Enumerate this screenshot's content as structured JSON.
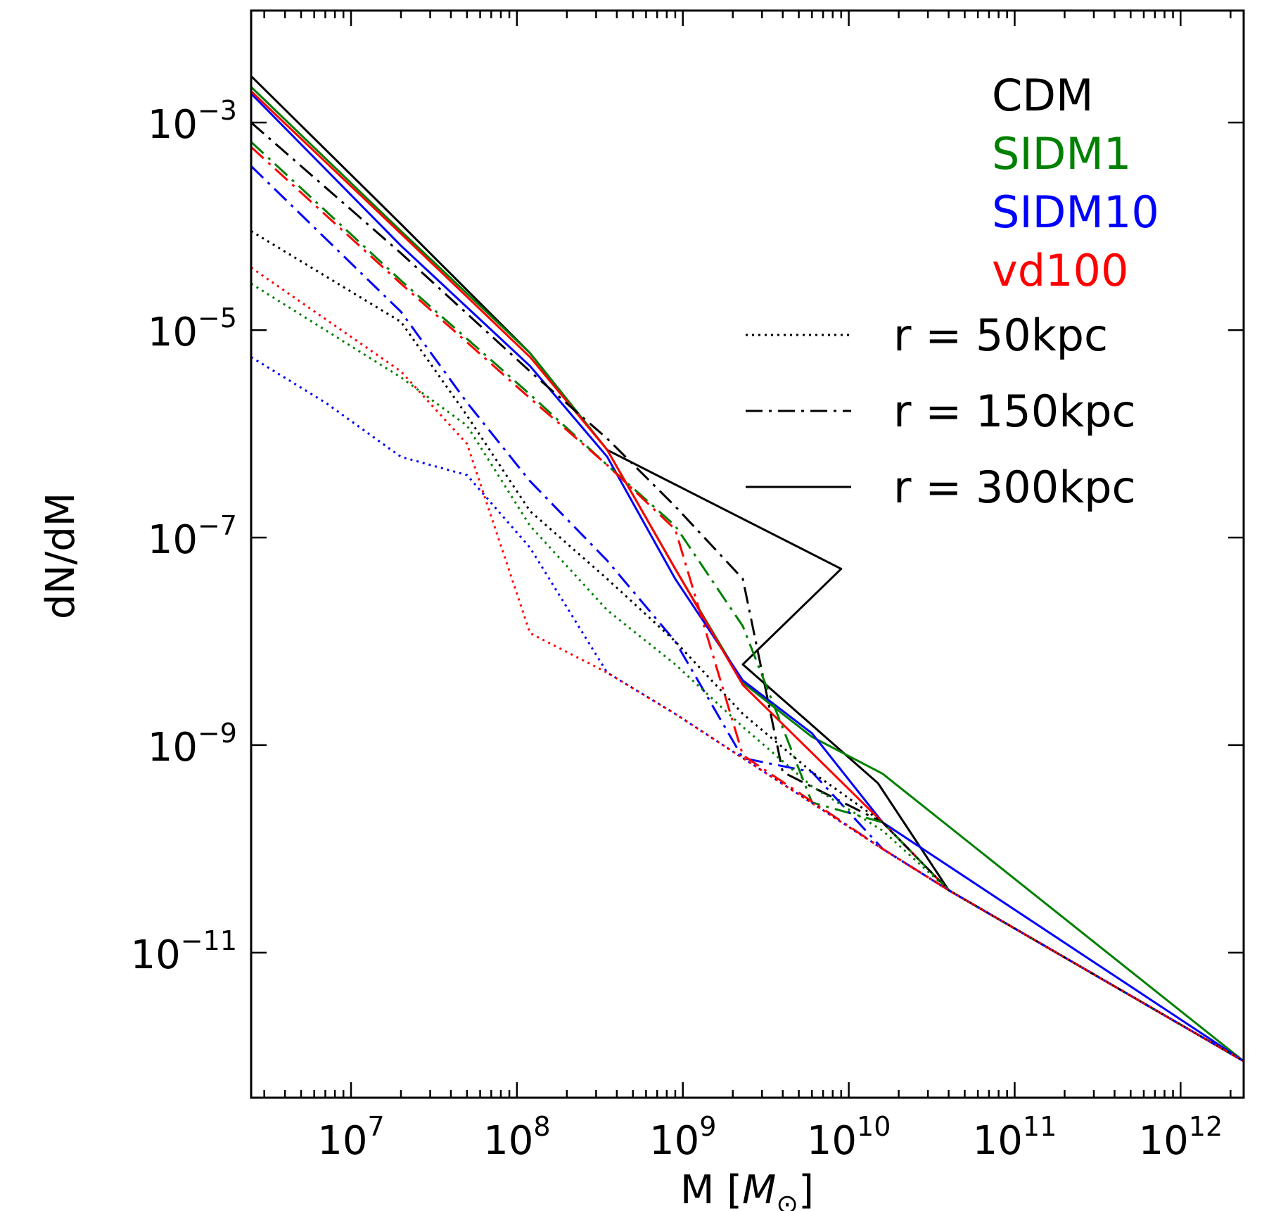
{
  "chart_data": {
    "type": "line",
    "title": "",
    "xlabel_main": "M [",
    "xlabel_sym": "M",
    "xlabel_sub": "⊙",
    "xlabel_end": "]",
    "ylabel": "dN/dM",
    "xscale": "log",
    "yscale": "log",
    "xlim": [
      2500000.0,
      2400000000000.0
    ],
    "ylim": [
      4e-13,
      0.012
    ],
    "xticks": [
      {
        "base": "10",
        "exp": "7",
        "value": 10000000.0
      },
      {
        "base": "10",
        "exp": "8",
        "value": 100000000.0
      },
      {
        "base": "10",
        "exp": "9",
        "value": 1000000000.0
      },
      {
        "base": "10",
        "exp": "10",
        "value": 10000000000.0
      },
      {
        "base": "10",
        "exp": "11",
        "value": 100000000000.0
      },
      {
        "base": "10",
        "exp": "12",
        "value": 1000000000000.0
      }
    ],
    "yticks": [
      {
        "base": "10",
        "exp": "−3",
        "value": 0.001
      },
      {
        "base": "10",
        "exp": "−5",
        "value": 1e-05
      },
      {
        "base": "10",
        "exp": "−7",
        "value": 1e-07
      },
      {
        "base": "10",
        "exp": "−9",
        "value": 1e-09
      },
      {
        "base": "10",
        "exp": "−11",
        "value": 1e-11
      }
    ],
    "grid": false,
    "legend_position": "top-right",
    "model_legend": [
      {
        "label": "CDM",
        "color": "#000000"
      },
      {
        "label": "SIDM1",
        "color": "#008000"
      },
      {
        "label": "SIDM10",
        "color": "#0000ff"
      },
      {
        "label": "vd100",
        "color": "#ff0000"
      }
    ],
    "style_legend": [
      {
        "label": "r = 50kpc",
        "dash": "dotted"
      },
      {
        "label": "r = 150kpc",
        "dash": "dashdot"
      },
      {
        "label": "r = 300kpc",
        "dash": "solid"
      }
    ],
    "series": [
      {
        "model": "CDM",
        "radius": "300kpc",
        "color": "#000000",
        "dash": "solid",
        "points": [
          [
            2500000.0,
            0.0028
          ],
          [
            20000000.0,
            0.000105
          ],
          [
            120000000.0,
            6e-06
          ],
          [
            350000000.0,
            7e-07
          ],
          [
            9000000000.0,
            5e-08
          ],
          [
            2300000000.0,
            6e-09
          ],
          [
            15000000000.0,
            4.3e-10
          ],
          [
            40000000000.0,
            4e-11
          ],
          [
            2400000000000.0,
            9e-13
          ]
        ]
      },
      {
        "model": "SIDM1",
        "radius": "300kpc",
        "color": "#008000",
        "dash": "solid",
        "points": [
          [
            2500000.0,
            0.0022
          ],
          [
            20000000.0,
            9e-05
          ],
          [
            120000000.0,
            6e-06
          ],
          [
            350000000.0,
            7e-07
          ],
          [
            900000000.0,
            5e-08
          ],
          [
            2300000000.0,
            4e-09
          ],
          [
            6000000000.0,
            1.2e-09
          ],
          [
            16000000000.0,
            5.3e-10
          ],
          [
            2400000000000.0,
            9e-13
          ]
        ]
      },
      {
        "model": "SIDM10",
        "radius": "300kpc",
        "color": "#0000ff",
        "dash": "solid",
        "points": [
          [
            2500000.0,
            0.0019
          ],
          [
            20000000.0,
            6.5e-05
          ],
          [
            120000000.0,
            4.5e-06
          ],
          [
            350000000.0,
            6e-07
          ],
          [
            900000000.0,
            4e-08
          ],
          [
            2300000000.0,
            4.2e-09
          ],
          [
            6000000000.0,
            1.3e-09
          ],
          [
            16000000000.0,
            1.8e-10
          ],
          [
            2400000000000.0,
            9e-13
          ]
        ]
      },
      {
        "model": "vd100",
        "radius": "300kpc",
        "color": "#ff0000",
        "dash": "solid",
        "points": [
          [
            2500000.0,
            0.002
          ],
          [
            20000000.0,
            8.5e-05
          ],
          [
            120000000.0,
            5.5e-06
          ],
          [
            350000000.0,
            7e-07
          ],
          [
            900000000.0,
            5e-08
          ],
          [
            2300000000.0,
            3.8e-09
          ],
          [
            16000000000.0,
            1.8e-10
          ],
          [
            40000000000.0,
            4e-11
          ],
          [
            2400000000000.0,
            9e-13
          ]
        ]
      },
      {
        "model": "CDM",
        "radius": "150kpc",
        "color": "#000000",
        "dash": "dashdot",
        "points": [
          [
            2500000.0,
            0.001
          ],
          [
            20000000.0,
            5.5e-05
          ],
          [
            120000000.0,
            4e-06
          ],
          [
            350000000.0,
            9e-07
          ],
          [
            900000000.0,
            2e-07
          ],
          [
            2300000000.0,
            4e-08
          ],
          [
            4000000000.0,
            5.5e-10
          ],
          [
            16000000000.0,
            1.8e-10
          ],
          [
            40000000000.0,
            4e-11
          ],
          [
            2400000000000.0,
            9e-13
          ]
        ]
      },
      {
        "model": "SIDM1",
        "radius": "150kpc",
        "color": "#008000",
        "dash": "dashdot",
        "points": [
          [
            2500000.0,
            0.00065
          ],
          [
            20000000.0,
            3e-05
          ],
          [
            120000000.0,
            2.4e-06
          ],
          [
            350000000.0,
            5e-07
          ],
          [
            900000000.0,
            1.3e-07
          ],
          [
            2300000000.0,
            1.4e-08
          ],
          [
            6000000000.0,
            2.8e-10
          ],
          [
            16000000000.0,
            1.8e-10
          ],
          [
            40000000000.0,
            4e-11
          ],
          [
            2400000000000.0,
            9e-13
          ]
        ]
      },
      {
        "model": "SIDM10",
        "radius": "150kpc",
        "color": "#0000ff",
        "dash": "dashdot",
        "points": [
          [
            2500000.0,
            0.00038
          ],
          [
            20000000.0,
            1.5e-05
          ],
          [
            50000000.0,
            2e-06
          ],
          [
            120000000.0,
            3.5e-07
          ],
          [
            350000000.0,
            6e-08
          ],
          [
            900000000.0,
            1e-08
          ],
          [
            2300000000.0,
            7.5e-10
          ],
          [
            6000000000.0,
            5.5e-10
          ],
          [
            16000000000.0,
            1e-10
          ],
          [
            40000000000.0,
            4e-11
          ],
          [
            2400000000000.0,
            9e-13
          ]
        ]
      },
      {
        "model": "vd100",
        "radius": "150kpc",
        "color": "#ff0000",
        "dash": "dashdot",
        "points": [
          [
            2500000.0,
            0.00058
          ],
          [
            20000000.0,
            2.8e-05
          ],
          [
            120000000.0,
            2.2e-06
          ],
          [
            350000000.0,
            5e-07
          ],
          [
            900000000.0,
            1.2e-07
          ],
          [
            2300000000.0,
            8e-10
          ],
          [
            16000000000.0,
            1e-10
          ],
          [
            40000000000.0,
            4e-11
          ],
          [
            2400000000000.0,
            9e-13
          ]
        ]
      },
      {
        "model": "CDM",
        "radius": "50kpc",
        "color": "#000000",
        "dash": "dotted",
        "points": [
          [
            2500000.0,
            9e-05
          ],
          [
            20000000.0,
            1.2e-05
          ],
          [
            50000000.0,
            1.5e-06
          ],
          [
            120000000.0,
            1.8e-07
          ],
          [
            350000000.0,
            4e-08
          ],
          [
            900000000.0,
            1e-08
          ],
          [
            2300000000.0,
            2e-09
          ],
          [
            6000000000.0,
            5.5e-10
          ],
          [
            16000000000.0,
            1.8e-10
          ],
          [
            40000000000.0,
            4e-11
          ],
          [
            2400000000000.0,
            9e-13
          ]
        ]
      },
      {
        "model": "SIDM1",
        "radius": "50kpc",
        "color": "#008000",
        "dash": "dotted",
        "points": [
          [
            2500000.0,
            2.8e-05
          ],
          [
            20000000.0,
            3.5e-06
          ],
          [
            50000000.0,
            1.2e-06
          ],
          [
            120000000.0,
            1.3e-07
          ],
          [
            350000000.0,
            2e-08
          ],
          [
            900000000.0,
            6e-09
          ],
          [
            2300000000.0,
            1.5e-09
          ],
          [
            6000000000.0,
            4e-10
          ],
          [
            16000000000.0,
            1.5e-10
          ],
          [
            40000000000.0,
            4e-11
          ],
          [
            2400000000000.0,
            9e-13
          ]
        ]
      },
      {
        "model": "SIDM10",
        "radius": "50kpc",
        "color": "#0000ff",
        "dash": "dotted",
        "points": [
          [
            2500000.0,
            5.5e-06
          ],
          [
            7000000.0,
            2e-06
          ],
          [
            20000000.0,
            6e-07
          ],
          [
            50000000.0,
            4e-07
          ],
          [
            120000000.0,
            8e-08
          ],
          [
            350000000.0,
            5e-09
          ],
          [
            900000000.0,
            2e-09
          ],
          [
            2300000000.0,
            7.5e-10
          ],
          [
            16000000000.0,
            1e-10
          ],
          [
            40000000000.0,
            4e-11
          ],
          [
            2400000000000.0,
            9e-13
          ]
        ]
      },
      {
        "model": "vd100",
        "radius": "50kpc",
        "color": "#ff0000",
        "dash": "dotted",
        "points": [
          [
            2500000.0,
            4e-05
          ],
          [
            20000000.0,
            4e-06
          ],
          [
            50000000.0,
            8e-07
          ],
          [
            120000000.0,
            1.2e-08
          ],
          [
            350000000.0,
            5e-09
          ],
          [
            900000000.0,
            2e-09
          ],
          [
            2300000000.0,
            7.5e-10
          ],
          [
            16000000000.0,
            1e-10
          ],
          [
            40000000000.0,
            4e-11
          ],
          [
            2400000000000.0,
            9e-13
          ]
        ]
      }
    ]
  }
}
